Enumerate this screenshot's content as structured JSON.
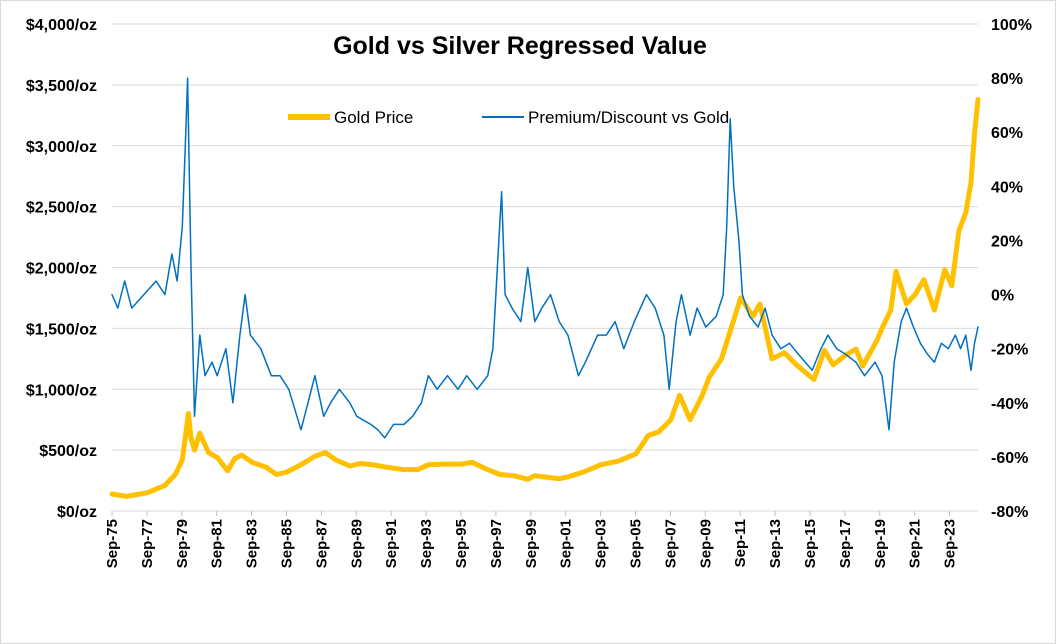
{
  "chart_data": {
    "type": "line",
    "title": "Gold vs Silver Regressed Value",
    "x_tick_labels": [
      "Sep-75",
      "Sep-77",
      "Sep-79",
      "Sep-81",
      "Sep-83",
      "Sep-85",
      "Sep-87",
      "Sep-89",
      "Sep-91",
      "Sep-93",
      "Sep-95",
      "Sep-97",
      "Sep-99",
      "Sep-01",
      "Sep-03",
      "Sep-05",
      "Sep-07",
      "Sep-09",
      "Sep-11",
      "Sep-13",
      "Sep-15",
      "Sep-17",
      "Sep-19",
      "Sep-21",
      "Sep-23"
    ],
    "x_range": [
      1975.67,
      2025.3
    ],
    "y_left": {
      "range": [
        0,
        4000
      ],
      "tick_values": [
        0,
        500,
        1000,
        1500,
        2000,
        2500,
        3000,
        3500,
        4000
      ],
      "tick_labels": [
        "$0/oz",
        "$500/oz",
        "$1,000/oz",
        "$1,500/oz",
        "$2,000/oz",
        "$2,500/oz",
        "$3,000/oz",
        "$3,500/oz",
        "$4,000/oz"
      ]
    },
    "y_right": {
      "range": [
        -80,
        100
      ],
      "tick_values": [
        -80,
        -60,
        -40,
        -20,
        0,
        20,
        40,
        60,
        80,
        100
      ],
      "tick_labels": [
        "-80%",
        "-60%",
        "-40%",
        "-20%",
        "0%",
        "20%",
        "40%",
        "60%",
        "80%",
        "100%"
      ]
    },
    "grid": true,
    "legend_position": "top-center",
    "series": [
      {
        "name": "Gold Price",
        "axis": "left",
        "color": "#ffc000",
        "unit": "$/oz",
        "points": [
          [
            1975.67,
            140
          ],
          [
            1976.5,
            120
          ],
          [
            1977.7,
            150
          ],
          [
            1978.7,
            210
          ],
          [
            1979.3,
            300
          ],
          [
            1979.7,
            420
          ],
          [
            1980.05,
            800
          ],
          [
            1980.2,
            600
          ],
          [
            1980.4,
            500
          ],
          [
            1980.7,
            640
          ],
          [
            1981.2,
            480
          ],
          [
            1981.7,
            440
          ],
          [
            1982.3,
            330
          ],
          [
            1982.7,
            430
          ],
          [
            1983.1,
            460
          ],
          [
            1983.7,
            400
          ],
          [
            1984.5,
            360
          ],
          [
            1985.1,
            300
          ],
          [
            1985.7,
            320
          ],
          [
            1986.5,
            380
          ],
          [
            1987.3,
            450
          ],
          [
            1987.9,
            480
          ],
          [
            1988.5,
            420
          ],
          [
            1989.3,
            370
          ],
          [
            1989.9,
            390
          ],
          [
            1990.6,
            380
          ],
          [
            1991.4,
            360
          ],
          [
            1992.4,
            340
          ],
          [
            1993.2,
            340
          ],
          [
            1993.8,
            380
          ],
          [
            1994.7,
            385
          ],
          [
            1995.7,
            385
          ],
          [
            1996.3,
            400
          ],
          [
            1997.2,
            340
          ],
          [
            1997.9,
            300
          ],
          [
            1998.7,
            290
          ],
          [
            1999.5,
            260
          ],
          [
            1999.9,
            290
          ],
          [
            2000.7,
            275
          ],
          [
            2001.3,
            265
          ],
          [
            2001.8,
            280
          ],
          [
            2002.7,
            320
          ],
          [
            2003.7,
            380
          ],
          [
            2004.7,
            410
          ],
          [
            2005.7,
            470
          ],
          [
            2006.4,
            620
          ],
          [
            2007.0,
            650
          ],
          [
            2007.7,
            750
          ],
          [
            2008.2,
            950
          ],
          [
            2008.8,
            750
          ],
          [
            2009.5,
            950
          ],
          [
            2009.9,
            1100
          ],
          [
            2010.6,
            1250
          ],
          [
            2011.7,
            1750
          ],
          [
            2012.4,
            1600
          ],
          [
            2012.8,
            1700
          ],
          [
            2013.5,
            1250
          ],
          [
            2014.2,
            1300
          ],
          [
            2014.9,
            1200
          ],
          [
            2015.9,
            1080
          ],
          [
            2016.5,
            1320
          ],
          [
            2017.0,
            1200
          ],
          [
            2017.7,
            1280
          ],
          [
            2018.3,
            1330
          ],
          [
            2018.7,
            1190
          ],
          [
            2019.5,
            1400
          ],
          [
            2019.8,
            1500
          ],
          [
            2020.3,
            1650
          ],
          [
            2020.6,
            1970
          ],
          [
            2021.2,
            1700
          ],
          [
            2021.7,
            1780
          ],
          [
            2022.2,
            1900
          ],
          [
            2022.8,
            1650
          ],
          [
            2023.4,
            1980
          ],
          [
            2023.8,
            1850
          ],
          [
            2024.2,
            2300
          ],
          [
            2024.6,
            2450
          ],
          [
            2024.9,
            2700
          ],
          [
            2025.1,
            3100
          ],
          [
            2025.3,
            3380
          ]
        ]
      },
      {
        "name": "Premium/Discount vs Gold",
        "axis": "right",
        "color": "#0070c0",
        "unit": "%",
        "points": [
          [
            1975.67,
            0
          ],
          [
            1976.0,
            -5
          ],
          [
            1976.4,
            5
          ],
          [
            1976.8,
            -5
          ],
          [
            1977.5,
            0
          ],
          [
            1978.2,
            5
          ],
          [
            1978.7,
            0
          ],
          [
            1979.1,
            15
          ],
          [
            1979.4,
            5
          ],
          [
            1979.7,
            25
          ],
          [
            1979.9,
            60
          ],
          [
            1980.0,
            80
          ],
          [
            1980.2,
            10
          ],
          [
            1980.4,
            -45
          ],
          [
            1980.7,
            -15
          ],
          [
            1981.0,
            -30
          ],
          [
            1981.4,
            -25
          ],
          [
            1981.7,
            -30
          ],
          [
            1982.2,
            -20
          ],
          [
            1982.6,
            -40
          ],
          [
            1983.0,
            -15
          ],
          [
            1983.3,
            0
          ],
          [
            1983.6,
            -15
          ],
          [
            1984.2,
            -20
          ],
          [
            1984.8,
            -30
          ],
          [
            1985.3,
            -30
          ],
          [
            1985.8,
            -35
          ],
          [
            1986.5,
            -50
          ],
          [
            1986.9,
            -40
          ],
          [
            1987.3,
            -30
          ],
          [
            1987.8,
            -45
          ],
          [
            1988.2,
            -40
          ],
          [
            1988.7,
            -35
          ],
          [
            1989.3,
            -40
          ],
          [
            1989.7,
            -45
          ],
          [
            1990.5,
            -48
          ],
          [
            1990.9,
            -50
          ],
          [
            1991.3,
            -53
          ],
          [
            1991.8,
            -48
          ],
          [
            1992.4,
            -48
          ],
          [
            1992.9,
            -45
          ],
          [
            1993.4,
            -40
          ],
          [
            1993.8,
            -30
          ],
          [
            1994.3,
            -35
          ],
          [
            1994.9,
            -30
          ],
          [
            1995.5,
            -35
          ],
          [
            1996.0,
            -30
          ],
          [
            1996.6,
            -35
          ],
          [
            1997.2,
            -30
          ],
          [
            1997.5,
            -20
          ],
          [
            1997.8,
            15
          ],
          [
            1998.0,
            38
          ],
          [
            1998.2,
            0
          ],
          [
            1998.6,
            -5
          ],
          [
            1999.1,
            -10
          ],
          [
            1999.5,
            10
          ],
          [
            1999.9,
            -10
          ],
          [
            2000.3,
            -5
          ],
          [
            2000.8,
            0
          ],
          [
            2001.3,
            -10
          ],
          [
            2001.8,
            -15
          ],
          [
            2002.4,
            -30
          ],
          [
            2002.8,
            -25
          ],
          [
            2003.5,
            -15
          ],
          [
            2004.0,
            -15
          ],
          [
            2004.5,
            -10
          ],
          [
            2005.0,
            -20
          ],
          [
            2005.6,
            -10
          ],
          [
            2006.3,
            0
          ],
          [
            2006.8,
            -5
          ],
          [
            2007.3,
            -15
          ],
          [
            2007.6,
            -35
          ],
          [
            2008.0,
            -10
          ],
          [
            2008.3,
            0
          ],
          [
            2008.8,
            -15
          ],
          [
            2009.2,
            -5
          ],
          [
            2009.7,
            -12
          ],
          [
            2010.3,
            -8
          ],
          [
            2010.7,
            0
          ],
          [
            2010.9,
            25
          ],
          [
            2011.1,
            65
          ],
          [
            2011.3,
            40
          ],
          [
            2011.6,
            20
          ],
          [
            2011.8,
            0
          ],
          [
            2012.2,
            -8
          ],
          [
            2012.7,
            -12
          ],
          [
            2013.1,
            -5
          ],
          [
            2013.5,
            -15
          ],
          [
            2014.0,
            -20
          ],
          [
            2014.5,
            -18
          ],
          [
            2015.0,
            -22
          ],
          [
            2015.4,
            -25
          ],
          [
            2015.8,
            -28
          ],
          [
            2016.3,
            -20
          ],
          [
            2016.7,
            -15
          ],
          [
            2017.2,
            -20
          ],
          [
            2017.7,
            -22
          ],
          [
            2018.3,
            -25
          ],
          [
            2018.8,
            -30
          ],
          [
            2019.4,
            -25
          ],
          [
            2019.8,
            -30
          ],
          [
            2020.2,
            -50
          ],
          [
            2020.5,
            -25
          ],
          [
            2020.9,
            -10
          ],
          [
            2021.2,
            -5
          ],
          [
            2021.6,
            -12
          ],
          [
            2022.0,
            -18
          ],
          [
            2022.4,
            -22
          ],
          [
            2022.8,
            -25
          ],
          [
            2023.2,
            -18
          ],
          [
            2023.6,
            -20
          ],
          [
            2024.0,
            -15
          ],
          [
            2024.3,
            -20
          ],
          [
            2024.6,
            -15
          ],
          [
            2024.9,
            -28
          ],
          [
            2025.1,
            -18
          ],
          [
            2025.3,
            -12
          ]
        ]
      }
    ]
  }
}
